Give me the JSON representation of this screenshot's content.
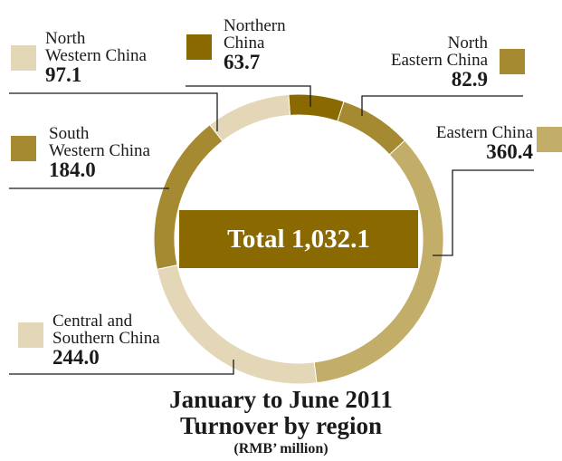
{
  "colors": {
    "dark": "#8a6a00",
    "mid": "#a58a32",
    "tan": "#c2ad69",
    "light": "#e3d7b8",
    "line": "#1a1a1a"
  },
  "chart_data": {
    "type": "pie",
    "title": "January to June 2011",
    "subtitle": "Turnover by region",
    "unit": "(RMB’ million)",
    "total_label": "Total 1,032.1",
    "slices": [
      {
        "name": "Northern China",
        "value": 63.7,
        "color": "#8a6a00"
      },
      {
        "name": "North Eastern China",
        "value": 82.9,
        "color": "#a58a32"
      },
      {
        "name": "Eastern China",
        "value": 360.4,
        "color": "#c2ad69"
      },
      {
        "name": "Central and Southern China",
        "value": 244.0,
        "color": "#e3d7b8"
      },
      {
        "name": "South Western China",
        "value": 184.0,
        "color": "#a58a32"
      },
      {
        "name": "North Western China",
        "value": 97.1,
        "color": "#e3d7b8"
      }
    ]
  },
  "labels": {
    "north_western": {
      "line1": "North",
      "line2": "Western China",
      "value": "97.1"
    },
    "northern": {
      "line1": "Northern",
      "line2": "China",
      "value": "63.7"
    },
    "north_eastern": {
      "line1": "North",
      "line2": "Eastern China",
      "value": "82.9"
    },
    "south_western": {
      "line1": "South",
      "line2": "Western China",
      "value": "184.0"
    },
    "eastern": {
      "line1": "Eastern China",
      "value": "360.4"
    },
    "central_southern": {
      "line1": "Central and",
      "line2": "Southern China",
      "value": "244.0"
    }
  }
}
